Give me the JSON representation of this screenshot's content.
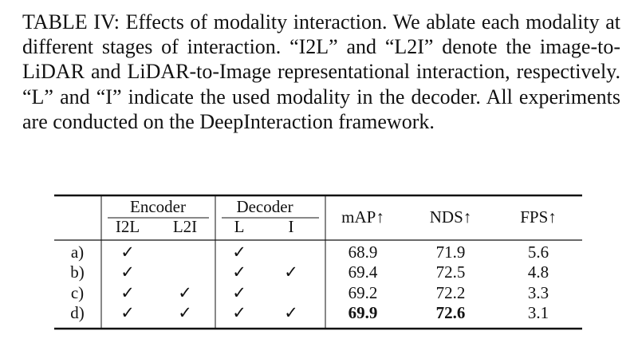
{
  "caption": "TABLE IV: Effects of modality interaction. We ablate each modality at different stages of interaction. “I2L” and “L2I” denote the image-to-LiDAR and LiDAR-to-Image representational interaction, respectively. “L” and “I” indicate the used modality in the decoder. All experiments are conducted on the DeepInteraction framework.",
  "table": {
    "groups": [
      "Encoder",
      "Decoder"
    ],
    "columns": [
      "I2L",
      "L2I",
      "L",
      "I",
      "mAP↑",
      "NDS↑",
      "FPS↑"
    ],
    "rows": [
      [
        "a)",
        "✓",
        null,
        "✓",
        null,
        "68.9",
        "71.9",
        "5.6"
      ],
      [
        "b)",
        "✓",
        null,
        "✓",
        "✓",
        "69.4",
        "72.5",
        "4.8"
      ],
      [
        "c)",
        "✓",
        "✓",
        "✓",
        null,
        "69.2",
        "72.2",
        "3.3"
      ],
      [
        "d)",
        "✓",
        "✓",
        "✓",
        "✓",
        {
          "text": "69.9",
          "bold": true
        },
        {
          "text": "72.6",
          "bold": true
        },
        "3.1"
      ]
    ]
  }
}
